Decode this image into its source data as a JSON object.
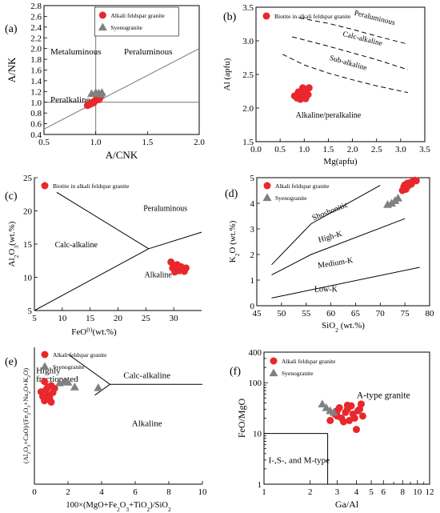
{
  "chart_data": [
    {
      "panel": "(a)",
      "type": "scatter",
      "xlabel": "A/CNK",
      "ylabel": "A/NK",
      "xlim": [
        0.5,
        2.0
      ],
      "ylim": [
        0.4,
        2.8
      ],
      "xticks": [
        "0.5",
        "1.0",
        "1.5",
        "2.0"
      ],
      "yticks": [
        "0.4",
        "0.6",
        "0.8",
        "1.0",
        "1.2",
        "1.4",
        "1.6",
        "1.8",
        "2.0",
        "2.2",
        "2.4",
        "2.6",
        "2.8"
      ],
      "regions": [
        "Metaluminous",
        "Peraluminous",
        "Peralkaline"
      ],
      "legend": [
        "Alkali feldspar granite",
        "Syenogranite"
      ],
      "boundaries": [
        {
          "points": [
            [
              1.0,
              0.4
            ],
            [
              1.0,
              2.8
            ]
          ]
        },
        {
          "points": [
            [
              0.5,
              1.0
            ],
            [
              2.0,
              1.0
            ]
          ]
        },
        {
          "points": [
            [
              0.5,
              0.5
            ],
            [
              2.0,
              2.0
            ]
          ]
        }
      ],
      "series": [
        {
          "name": "Alkali feldspar granite",
          "marker": "circle",
          "color": "#e8282c",
          "points": [
            [
              0.92,
              0.94
            ],
            [
              0.94,
              0.96
            ],
            [
              0.96,
              0.98
            ],
            [
              0.97,
              1.0
            ],
            [
              0.99,
              1.02
            ],
            [
              1.0,
              1.04
            ],
            [
              1.01,
              1.06
            ],
            [
              1.02,
              1.07
            ],
            [
              1.03,
              1.05
            ],
            [
              1.04,
              1.08
            ],
            [
              0.98,
              0.99
            ],
            [
              0.95,
              0.97
            ]
          ]
        },
        {
          "name": "Syenogranite",
          "marker": "triangle",
          "color": "#808080",
          "points": [
            [
              0.96,
              1.16
            ],
            [
              1.0,
              1.18
            ],
            [
              1.03,
              1.17
            ],
            [
              1.05,
              1.15
            ],
            [
              1.06,
              1.18
            ]
          ]
        }
      ]
    },
    {
      "panel": "(b)",
      "type": "scatter",
      "xlabel": "Mg(apfu)",
      "ylabel": "Al (apfu)",
      "xlim": [
        0.0,
        3.5
      ],
      "ylim": [
        1.5,
        3.5
      ],
      "xticks": [
        "0.0",
        "0.5",
        "1.0",
        "1.5",
        "2.0",
        "2.5",
        "3.0",
        "3.5"
      ],
      "yticks": [
        "1.5",
        "2.0",
        "2.5",
        "3.0",
        "3.5"
      ],
      "regions": [
        "Peraluminous",
        "Calc-alkaline",
        "Sub-alkaline",
        "Alkaline/peralkaline"
      ],
      "legend": [
        "Biotite in alkali feldspar granite"
      ],
      "boundaries": [
        {
          "dashed": true,
          "points": [
            [
              0.9,
              3.34
            ],
            [
              1.5,
              3.26
            ],
            [
              2.0,
              3.17
            ],
            [
              2.5,
              3.07
            ],
            [
              3.15,
              2.95
            ]
          ]
        },
        {
          "dashed": true,
          "points": [
            [
              0.75,
              3.06
            ],
            [
              1.5,
              2.92
            ],
            [
              2.0,
              2.82
            ],
            [
              2.5,
              2.72
            ],
            [
              3.15,
              2.57
            ]
          ]
        },
        {
          "dashed": true,
          "points": [
            [
              0.55,
              2.8
            ],
            [
              1.0,
              2.64
            ],
            [
              1.5,
              2.52
            ],
            [
              2.0,
              2.42
            ],
            [
              2.5,
              2.33
            ],
            [
              3.15,
              2.23
            ]
          ]
        }
      ],
      "series": [
        {
          "name": "Biotite in alkali feldspar granite",
          "marker": "circle",
          "color": "#e8282c",
          "points": [
            [
              0.8,
              2.18
            ],
            [
              0.85,
              2.15
            ],
            [
              0.9,
              2.2
            ],
            [
              0.92,
              2.13
            ],
            [
              0.95,
              2.25
            ],
            [
              0.98,
              2.2
            ],
            [
              1.0,
              2.16
            ],
            [
              1.02,
              2.28
            ],
            [
              1.05,
              2.22
            ],
            [
              1.08,
              2.2
            ],
            [
              1.1,
              2.3
            ],
            [
              0.88,
              2.24
            ],
            [
              0.97,
              2.3
            ],
            [
              1.03,
              2.14
            ]
          ]
        }
      ]
    },
    {
      "panel": "(c)",
      "type": "scatter",
      "xlabel": "FeO(t)(wt.%)",
      "ylabel": "Al2O3(wt.%)",
      "xlim": [
        5,
        35
      ],
      "ylim": [
        5,
        25
      ],
      "xticks": [
        "5",
        "10",
        "15",
        "20",
        "25",
        "30"
      ],
      "yticks": [
        "5",
        "10",
        "15",
        "20",
        "25"
      ],
      "regions": [
        "Peraluminous",
        "Calc-alkaline",
        "Alkaline"
      ],
      "legend": [
        "Biotite in alkali feldspar granite"
      ],
      "boundaries": [
        {
          "points": [
            [
              9,
              22.8
            ],
            [
              25.5,
              14.3
            ]
          ]
        },
        {
          "points": [
            [
              5,
              5
            ],
            [
              25.5,
              14.3
            ]
          ]
        },
        {
          "points": [
            [
              25.5,
              14.3
            ],
            [
              35,
              16.8
            ]
          ]
        }
      ],
      "series": [
        {
          "name": "Biotite in alkali feldspar granite",
          "marker": "circle",
          "color": "#e8282c",
          "points": [
            [
              29.5,
              12.3
            ],
            [
              30.0,
              11.8
            ],
            [
              30.5,
              11.5
            ],
            [
              30.8,
              11.2
            ],
            [
              31.0,
              11.0
            ],
            [
              31.3,
              11.6
            ],
            [
              31.6,
              11.3
            ],
            [
              31.9,
              10.9
            ],
            [
              32.2,
              11.4
            ],
            [
              30.2,
              10.8
            ],
            [
              30.6,
              11.9
            ],
            [
              29.8,
              11.4
            ]
          ]
        }
      ]
    },
    {
      "panel": "(d)",
      "type": "scatter",
      "xlabel": "SiO2 (wt.%)",
      "ylabel": "K2O (wt.%)",
      "xlim": [
        45,
        80
      ],
      "ylim": [
        0,
        5
      ],
      "xticks": [
        "45",
        "50",
        "55",
        "60",
        "65",
        "70",
        "75",
        "80"
      ],
      "yticks": [
        "0",
        "1",
        "2",
        "3",
        "4",
        "5"
      ],
      "regions": [
        "Shoshonitic",
        "High-K",
        "Medium-K",
        "Low-K"
      ],
      "legend": [
        "Alkali feldspar granite",
        "Syenogranite"
      ],
      "boundaries": [
        {
          "points": [
            [
              48,
              1.6
            ],
            [
              56,
              3.2
            ],
            [
              70,
              4.7
            ]
          ]
        },
        {
          "points": [
            [
              48,
              1.2
            ],
            [
              56,
              2.0
            ],
            [
              75,
              3.4
            ]
          ]
        },
        {
          "points": [
            [
              48,
              0.3
            ],
            [
              78,
              1.5
            ]
          ]
        }
      ],
      "series": [
        {
          "name": "Alkali feldspar granite",
          "marker": "circle",
          "color": "#e8282c",
          "points": [
            [
              74.5,
              4.5
            ],
            [
              74.8,
              4.65
            ],
            [
              75.0,
              4.72
            ],
            [
              75.3,
              4.6
            ],
            [
              75.5,
              4.78
            ],
            [
              75.8,
              4.7
            ],
            [
              76.0,
              4.8
            ],
            [
              76.3,
              4.75
            ],
            [
              76.6,
              4.85
            ],
            [
              77.0,
              4.9
            ],
            [
              77.3,
              4.88
            ],
            [
              75.2,
              4.55
            ]
          ]
        },
        {
          "name": "Syenogranite",
          "marker": "triangle",
          "color": "#808080",
          "points": [
            [
              71.5,
              3.95
            ],
            [
              72.3,
              4.0
            ],
            [
              73.0,
              4.1
            ],
            [
              73.6,
              4.2
            ]
          ]
        }
      ]
    },
    {
      "panel": "(e)",
      "type": "scatter",
      "xlabel": "100×(MgO+Fe2O3+TiO2)/SiO2",
      "ylabel": "(Al2O3+CaO)/(Fe2O3+Na2O+K2O)",
      "xlim": [
        0,
        10
      ],
      "ylim": [
        0,
        2.0
      ],
      "xticks": [
        "0",
        "2",
        "4",
        "6",
        "8",
        "10"
      ],
      "regions": [
        "Highly fractionated",
        "Calc-alkaline",
        "Alkaline"
      ],
      "legend": [
        "Alkali feldspar granite",
        "Syenogranite"
      ],
      "boundaries": [
        {
          "points": [
            [
              2.0,
              1.9
            ],
            [
              4.5,
              1.46
            ]
          ]
        },
        {
          "points": [
            [
              3.6,
              1.3
            ],
            [
              4.5,
              1.46
            ]
          ]
        },
        {
          "points": [
            [
              4.5,
              1.46
            ],
            [
              10,
              1.46
            ]
          ]
        }
      ],
      "series": [
        {
          "name": "Alkali feldspar granite",
          "marker": "circle",
          "color": "#e8282c",
          "points": [
            [
              0.4,
              1.35
            ],
            [
              0.6,
              1.5
            ],
            [
              0.6,
              1.22
            ],
            [
              0.8,
              1.42
            ],
            [
              0.8,
              1.3
            ],
            [
              1.0,
              1.44
            ],
            [
              1.0,
              1.2
            ],
            [
              1.1,
              1.34
            ],
            [
              0.5,
              1.28
            ],
            [
              0.7,
              1.38
            ],
            [
              0.9,
              1.26
            ],
            [
              1.2,
              1.4
            ]
          ]
        },
        {
          "name": "Syenogranite",
          "marker": "triangle",
          "color": "#808080",
          "points": [
            [
              1.5,
              1.48
            ],
            [
              1.8,
              1.5
            ],
            [
              2.0,
              1.49
            ],
            [
              2.4,
              1.42
            ],
            [
              3.8,
              1.41
            ]
          ]
        }
      ]
    },
    {
      "panel": "(f)",
      "type": "scatter",
      "xlabel": "Ga/Al",
      "ylabel": "FeO/MgO",
      "xscale": "log",
      "yscale": "log",
      "xlim": [
        1,
        12
      ],
      "ylim": [
        1,
        400
      ],
      "xticks": [
        "1",
        "2",
        "3",
        "4",
        "5",
        "6",
        "8",
        "10",
        "12"
      ],
      "yticks": [
        "1",
        "10",
        "100",
        "400"
      ],
      "regions": [
        "A-type granite",
        "I-,S-, and M-type"
      ],
      "legend": [
        "Alkali feldspar granite",
        "Syenogranite"
      ],
      "boundaries": [
        {
          "points": [
            [
              1,
              10
            ],
            [
              2.6,
              10
            ]
          ]
        },
        {
          "points": [
            [
              2.6,
              1
            ],
            [
              2.6,
              10
            ]
          ]
        }
      ],
      "series": [
        {
          "name": "Alkali feldspar granite",
          "marker": "circle",
          "color": "#e8282c",
          "points": [
            [
              2.7,
              18
            ],
            [
              2.9,
              24
            ],
            [
              3.0,
              28
            ],
            [
              3.1,
              32
            ],
            [
              3.2,
              20
            ],
            [
              3.3,
              17
            ],
            [
              3.4,
              26
            ],
            [
              3.5,
              30
            ],
            [
              3.6,
              18
            ],
            [
              3.7,
              35
            ],
            [
              3.8,
              24
            ],
            [
              3.9,
              20
            ],
            [
              4.0,
              12
            ],
            [
              4.1,
              28
            ],
            [
              4.2,
              30
            ],
            [
              4.3,
              38
            ],
            [
              4.4,
              22
            ],
            [
              3.0,
              22
            ],
            [
              3.5,
              36
            ]
          ]
        },
        {
          "name": "Syenogranite",
          "marker": "triangle",
          "color": "#808080",
          "points": [
            [
              2.4,
              38
            ],
            [
              2.55,
              32
            ],
            [
              2.7,
              28
            ],
            [
              2.85,
              26
            ]
          ]
        }
      ]
    }
  ]
}
